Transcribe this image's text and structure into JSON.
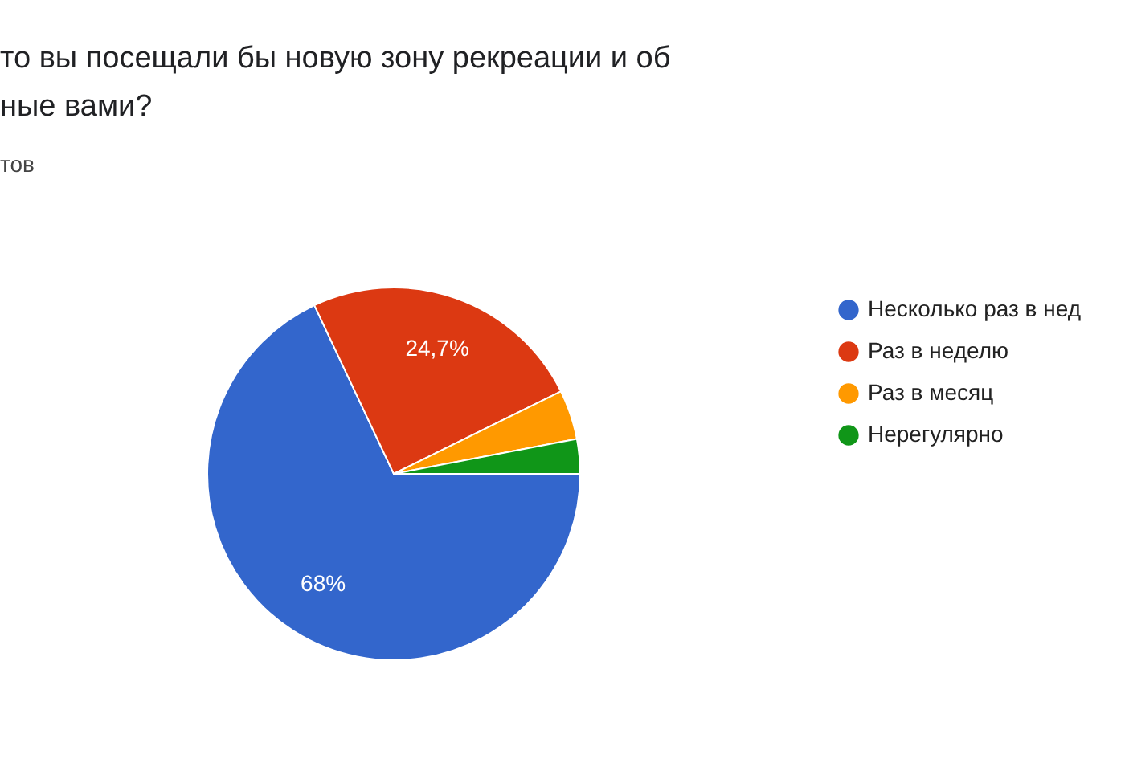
{
  "chart_data": {
    "type": "pie",
    "title": "то вы посещали бы новую зону рекреации и об\nные вами?",
    "subtitle": "тов",
    "categories": [
      "Несколько раз в нед",
      "Раз в неделю",
      "Раз в месяц",
      "Нерегулярно"
    ],
    "values": [
      68,
      24.7,
      4.3,
      3
    ],
    "colors": [
      "#3366cc",
      "#dc3912",
      "#ff9900",
      "#109618"
    ],
    "value_labels": [
      "68%",
      "24,7%",
      null,
      null
    ],
    "legend": "right"
  }
}
